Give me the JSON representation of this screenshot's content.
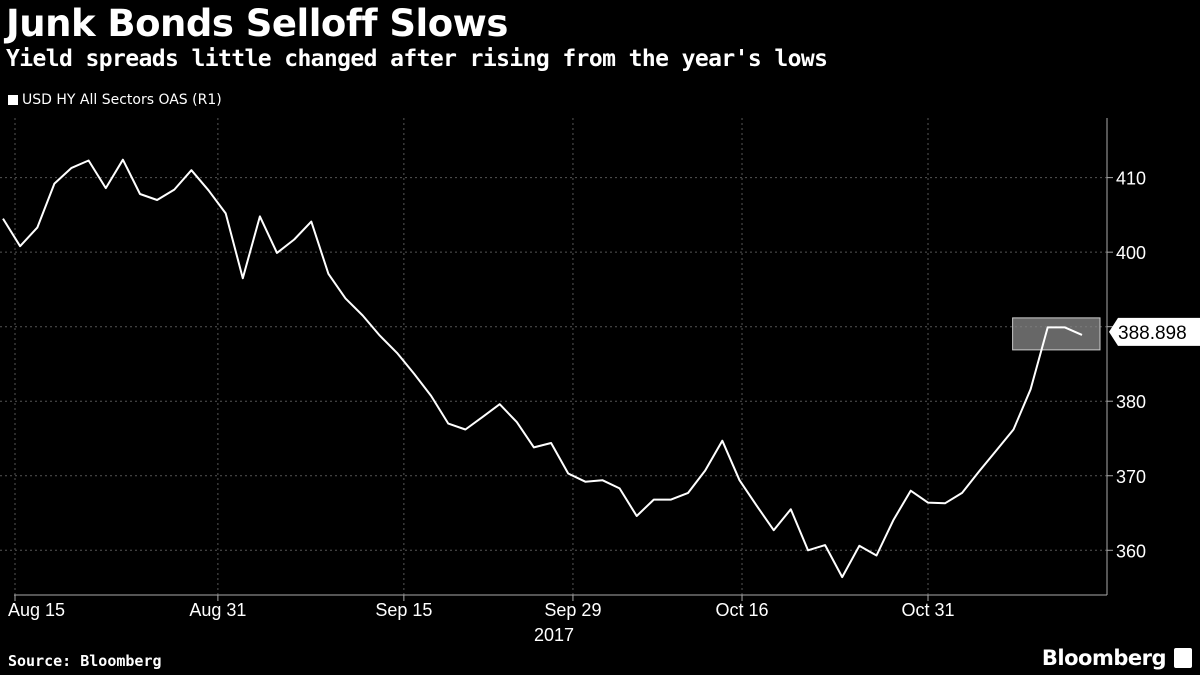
{
  "title": "Junk Bonds Selloff Slows",
  "subtitle": "Yield spreads little changed after rising from the year's lows",
  "source": "Source: Bloomberg",
  "brand": "Bloomberg",
  "chart_data": {
    "type": "line",
    "title": "Junk Bonds Selloff Slows",
    "subtitle": "Yield spreads little changed after rising from the year's lows",
    "xlabel": "2017",
    "ylabel": "",
    "ylim": [
      354,
      418
    ],
    "yticks": [
      360,
      370,
      380,
      390,
      400,
      410
    ],
    "ytick_labels": [
      "360",
      "370",
      "380",
      "",
      "400",
      "410"
    ],
    "x_ticks": [
      {
        "label": "Aug 15",
        "index": 0
      },
      {
        "label": "Aug 31",
        "index": 12
      },
      {
        "label": "Sep 15",
        "index": 23
      },
      {
        "label": "Sep 29",
        "index": 33
      },
      {
        "label": "Oct 16",
        "index": 43
      },
      {
        "label": "Oct 31",
        "index": 54
      }
    ],
    "year_label": "2017",
    "last_value_label": "388.898",
    "series": [
      {
        "name": "USD HY All Sectors OAS  (R1)",
        "color": "#ffffff",
        "values": [
          404.5,
          400.8,
          403.3,
          409.2,
          411.3,
          412.3,
          408.6,
          412.4,
          407.8,
          407.0,
          408.4,
          411.0,
          408.3,
          405.2,
          396.5,
          404.8,
          399.9,
          401.7,
          404.1,
          397.1,
          393.8,
          391.5,
          388.8,
          386.5,
          383.7,
          380.7,
          377.0,
          376.2,
          377.9,
          379.6,
          377.2,
          373.8,
          374.4,
          370.3,
          369.2,
          369.4,
          368.3,
          364.6,
          366.8,
          366.8,
          367.7,
          370.7,
          374.7,
          369.4,
          366.0,
          362.7,
          365.5,
          360.0,
          360.7,
          356.4,
          360.6,
          359.3,
          364.1,
          368.0,
          366.4,
          366.3,
          367.7,
          370.6,
          373.4,
          376.2,
          381.6,
          389.9,
          389.9,
          388.9
        ]
      }
    ],
    "highlight_window": {
      "from_index": 60,
      "to_index": 63
    }
  }
}
